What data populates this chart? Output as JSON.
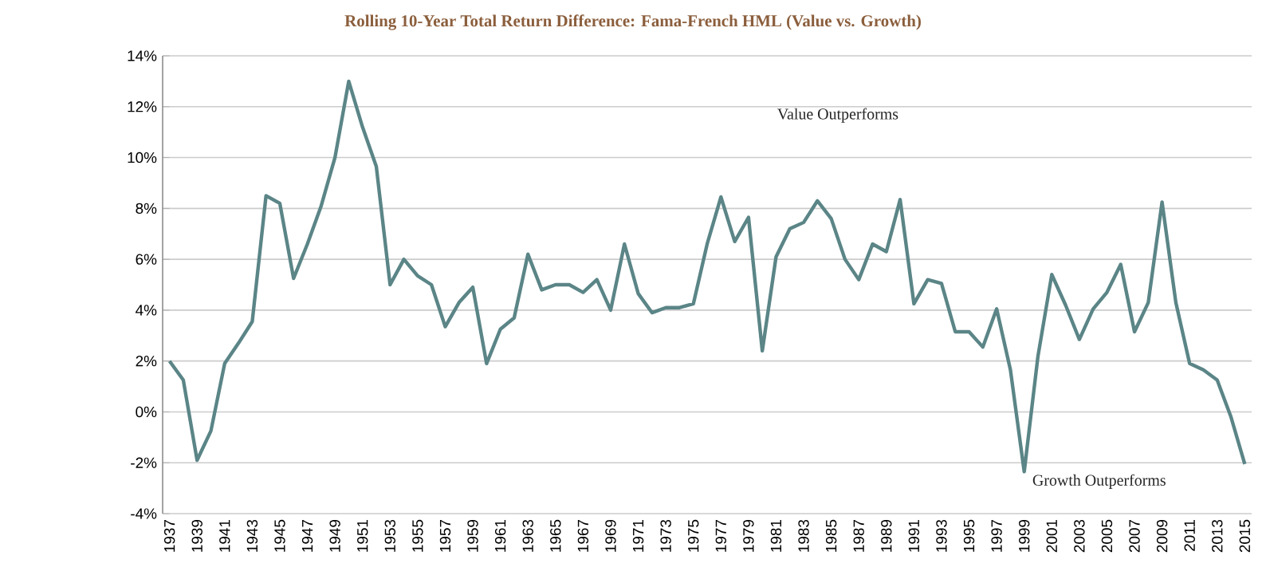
{
  "chart_data": {
    "type": "line",
    "title": "Rolling 10-Year Total Return Difference: Fama-French HML (Value vs. Growth)",
    "categories": [
      "1937",
      null,
      "1939",
      null,
      "1941",
      null,
      "1943",
      null,
      "1945",
      null,
      "1947",
      null,
      "1949",
      null,
      "1951",
      null,
      "1953",
      null,
      "1955",
      null,
      "1957",
      null,
      "1959",
      null,
      "1961",
      null,
      "1963",
      null,
      "1965",
      null,
      "1967",
      null,
      "1969",
      null,
      "1971",
      null,
      "1973",
      null,
      "1975",
      null,
      "1977",
      null,
      "1979",
      null,
      "1981",
      null,
      "1983",
      null,
      "1985",
      null,
      "1987",
      null,
      "1989",
      null,
      "1991",
      null,
      "1993",
      null,
      "1995",
      null,
      "1997",
      null,
      "1999",
      null,
      "2001",
      null,
      "2003",
      null,
      "2005",
      null,
      "2007",
      null,
      "2009",
      null,
      "2011",
      null,
      "2013",
      null,
      "2015"
    ],
    "series": [
      {
        "color": "#5b8587",
        "values": [
          2.0,
          1.25,
          -1.9,
          -0.75,
          1.9,
          2.7,
          3.55,
          8.5,
          8.2,
          5.25,
          6.6,
          8.1,
          10.0,
          13.0,
          11.2,
          9.65,
          5.0,
          6.0,
          5.35,
          5.0,
          3.35,
          4.3,
          4.9,
          1.9,
          3.25,
          3.7,
          6.2,
          4.8,
          5.0,
          5.0,
          4.7,
          5.2,
          4.0,
          6.6,
          4.65,
          3.9,
          4.1,
          4.1,
          4.25,
          6.6,
          8.45,
          6.7,
          7.65,
          2.4,
          6.1,
          7.2,
          7.45,
          8.3,
          7.6,
          6.0,
          5.2,
          6.6,
          6.3,
          8.35,
          4.25,
          5.2,
          5.05,
          3.15,
          3.15,
          2.55,
          4.05,
          1.65,
          -2.35,
          2.2,
          5.4,
          4.2,
          2.85,
          4.05,
          4.7,
          5.8,
          3.15,
          4.3,
          8.25,
          4.3,
          1.9,
          1.65,
          1.25,
          -0.2,
          -2.05
        ]
      }
    ],
    "ylim": [
      -4,
      14
    ],
    "yticks": [
      {
        "value": -4,
        "label": "-4%"
      },
      {
        "value": -2,
        "label": "-2%"
      },
      {
        "value": 0,
        "label": "0%"
      },
      {
        "value": 2,
        "label": "2%"
      },
      {
        "value": 4,
        "label": "4%"
      },
      {
        "value": 6,
        "label": "6%"
      },
      {
        "value": 8,
        "label": "8%"
      },
      {
        "value": 10,
        "label": "10%"
      },
      {
        "value": 12,
        "label": "12%"
      },
      {
        "value": 14,
        "label": "14%"
      }
    ],
    "grid": "y",
    "annotations": [
      "Value Outperforms",
      "Growth Outperforms"
    ]
  }
}
